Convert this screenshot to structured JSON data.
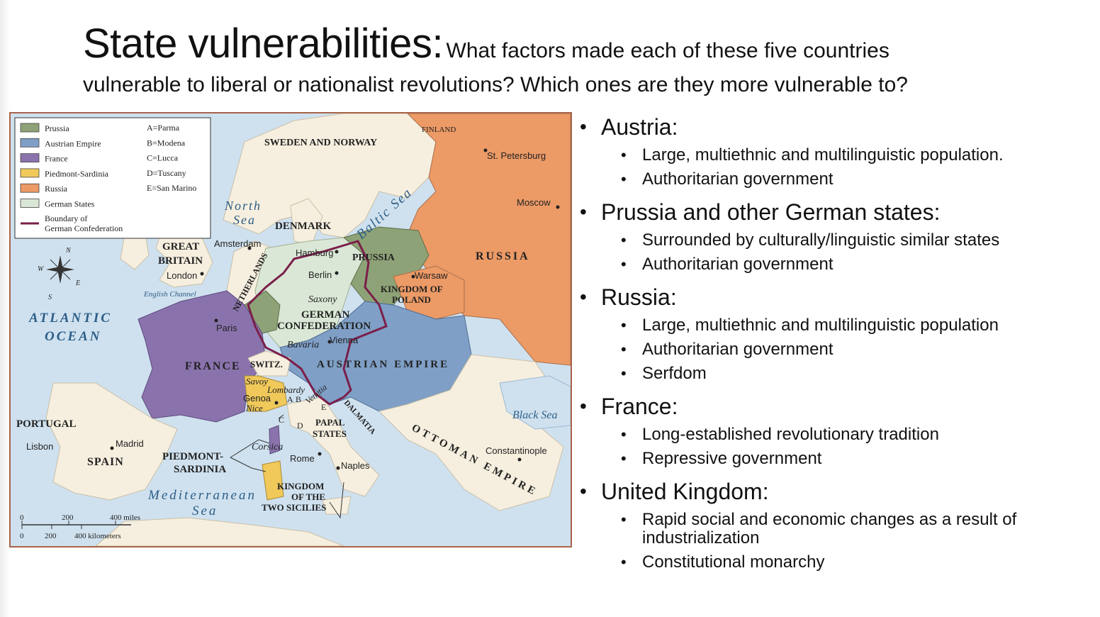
{
  "slide": {
    "title_main": "State vulnerabilities:",
    "title_sub_line1": "What factors made each of these five countries",
    "title_sub_line2": "vulnerable to liberal or nationalist revolutions?  Which ones are they more vulnerable to?"
  },
  "bullets": [
    {
      "heading": "Austria:",
      "items": [
        "Large, multiethnic and multilinguistic population.",
        "Authoritarian government"
      ]
    },
    {
      "heading": "Prussia and other German states:",
      "items": [
        "Surrounded by culturally/linguistic similar states",
        "Authoritarian government"
      ]
    },
    {
      "heading": "Russia:",
      "items": [
        "Large, multiethnic and multilinguistic population",
        "Authoritarian government",
        "Serfdom"
      ]
    },
    {
      "heading": "France:",
      "items": [
        "Long-established revolutionary tradition",
        "Repressive government"
      ]
    },
    {
      "heading": "United Kingdom:",
      "items": [
        "Rapid social and economic changes as a result of industrialization",
        "Constitutional monarchy"
      ]
    }
  ],
  "map": {
    "colors": {
      "prussia": "#8ea277",
      "austria": "#7f9fc6",
      "france": "#8a73ad",
      "piedmont": "#f0c95a",
      "russia": "#ec9a66",
      "german": "#dbe7d6",
      "land": "#f6efdf",
      "sea": "#cfe1ef",
      "boundary": "#7a1f4a"
    },
    "legend": {
      "items": [
        {
          "label": "Prussia",
          "color": "#8ea277"
        },
        {
          "label": "Austrian Empire",
          "color": "#7f9fc6"
        },
        {
          "label": "France",
          "color": "#8a73ad"
        },
        {
          "label": "Piedmont-Sardinia",
          "color": "#f0c95a"
        },
        {
          "label": "Russia",
          "color": "#ec9a66"
        },
        {
          "label": "German States",
          "color": "#dbe7d6"
        }
      ],
      "boundary_line1": "Boundary of",
      "boundary_line2": "German Confederation",
      "keys": [
        "A=Parma",
        "B=Modena",
        "C=Lucca",
        "D=Tuscany",
        "E=San Marino"
      ]
    },
    "compass": {
      "n": "N",
      "s": "S",
      "e": "E",
      "w": "W"
    },
    "labels": {
      "finland": "FINLAND",
      "sweden_norway": "SWEDEN AND NORWAY",
      "st_petersburg": "St. Petersburg",
      "moscow": "Moscow",
      "north": "North",
      "sea": "Sea",
      "baltic": "Baltic Sea",
      "denmark": "DENMARK",
      "russia": "RUSSIA",
      "great": "GREAT",
      "britain": "BRITAIN",
      "amsterdam": "Amsterdam",
      "london": "London",
      "hamburg": "Hamburg",
      "prussia": "PRUSSIA",
      "berlin": "Berlin",
      "warsaw": "Warsaw",
      "kingdom_of": "KINGDOM OF",
      "poland": "POLAND",
      "english_channel": "English Channel",
      "netherlands": "NETHERLANDS",
      "saxony": "Saxony",
      "german": "GERMAN",
      "confederation": "CONFEDERATION",
      "atlantic": "ATLANTIC",
      "ocean": "OCEAN",
      "paris": "Paris",
      "bavaria": "Bavaria",
      "vienna": "Vienna",
      "france": "FRANCE",
      "switz": "SWITZ.",
      "austrian_empire": "AUSTRIAN EMPIRE",
      "savoy": "Savoy",
      "lombardy": "Lombardy",
      "venetia": "Venetia",
      "genoa": "Genoa",
      "nice": "Nice",
      "black_sea": "Black Sea",
      "portugal": "PORTUGAL",
      "lisbon": "Lisbon",
      "madrid": "Madrid",
      "spain": "SPAIN",
      "corsica": "Corsica",
      "papal": "PAPAL",
      "states": "STATES",
      "dalmatia": "DALMATIA",
      "ottoman_empire": "OTTOMAN EMPIRE",
      "constantinople": "Constantinople",
      "piedmont": "PIEDMONT-",
      "sardinia": "SARDINIA",
      "rome": "Rome",
      "naples": "Naples",
      "mediterranean": "Mediterranean",
      "med_sea": "Sea",
      "kingdom": "KINGDOM",
      "of_the": "OF THE",
      "two_sicilies": "TWO SICILIES",
      "key_a": "A",
      "key_b": "B",
      "key_c": "C",
      "key_d": "D",
      "key_e": "E"
    },
    "scale": {
      "miles_0": "0",
      "miles_200": "200",
      "miles_400": "400 miles",
      "km_0": "0",
      "km_200": "200",
      "km_400": "400 kilometers"
    }
  }
}
